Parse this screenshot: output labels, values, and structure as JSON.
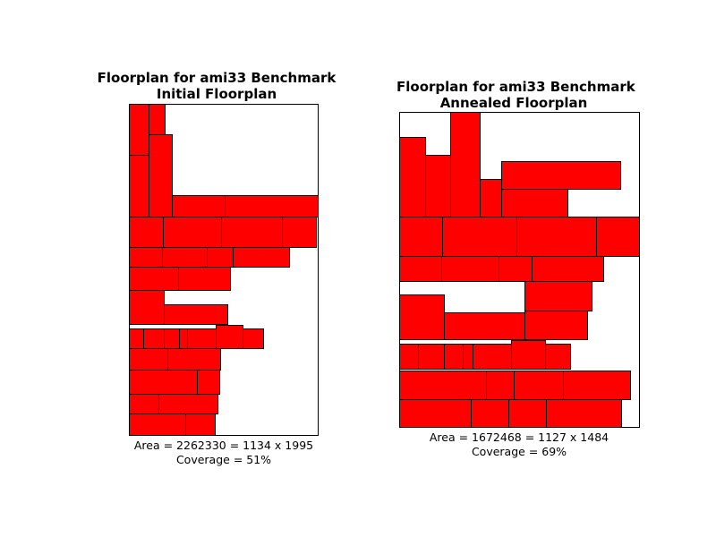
{
  "panels": [
    {
      "title_line1": "Floorplan for ami33 Benchmark",
      "title_line2": "Initial Floorplan",
      "area_text": "Area = 2262330 = 1134 x 1995",
      "coverage_text": "Coverage = 51%"
    },
    {
      "title_line1": "Floorplan for ami33 Benchmark",
      "title_line2": "Annealed Floorplan",
      "area_text": "Area = 1672468 = 1127 x 1484",
      "coverage_text": "Coverage = 69%"
    }
  ],
  "colors": {
    "block_fill": "#ff0000",
    "block_stroke": "#000000",
    "outline": "#000000",
    "background": "#ffffff"
  }
}
